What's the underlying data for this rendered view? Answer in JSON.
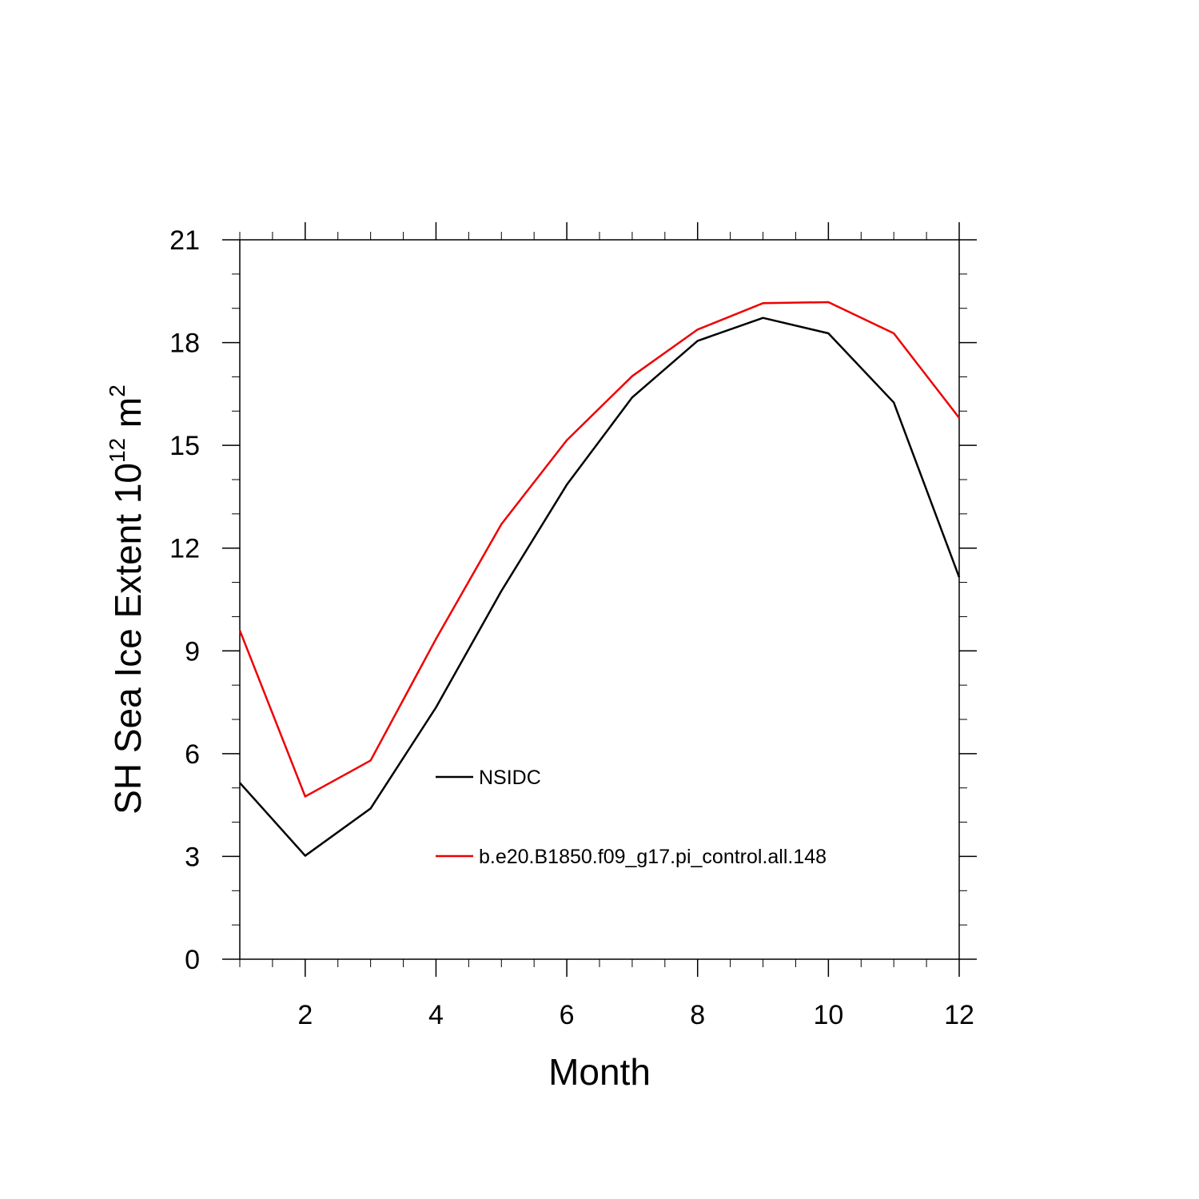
{
  "chart_data": {
    "type": "line",
    "title": "",
    "xlabel": "Month",
    "ylabel_text": "SH Sea Ice Extent 10",
    "ylabel_exp": "12",
    "ylabel_unit": " m",
    "ylabel_unit_exp": "2",
    "xlim": [
      1,
      12
    ],
    "ylim": [
      0,
      21
    ],
    "x_ticks": [
      2,
      4,
      6,
      8,
      10,
      12
    ],
    "x_tick_labels": [
      "2",
      "4",
      "6",
      "8",
      "10",
      "12"
    ],
    "y_ticks": [
      0,
      3,
      6,
      9,
      12,
      15,
      18,
      21
    ],
    "y_tick_labels": [
      "0",
      "3",
      "6",
      "9",
      "12",
      "15",
      "18",
      "21"
    ],
    "x": [
      1,
      2,
      3,
      4,
      5,
      6,
      7,
      8,
      9,
      10,
      11,
      12
    ],
    "series": [
      {
        "name": "NSIDC",
        "color": "#000000",
        "values": [
          5.15,
          3.02,
          4.4,
          7.35,
          10.75,
          13.85,
          16.4,
          18.05,
          18.72,
          18.27,
          16.25,
          11.15
        ]
      },
      {
        "name": "b.e20.B1850.f09_g17.pi_control.all.148",
        "color": "#ee0000",
        "values": [
          9.6,
          4.75,
          5.8,
          9.35,
          12.7,
          15.15,
          17.02,
          18.38,
          19.15,
          19.18,
          18.27,
          15.8
        ]
      }
    ],
    "grid": false,
    "legend_position": "inside-center"
  }
}
